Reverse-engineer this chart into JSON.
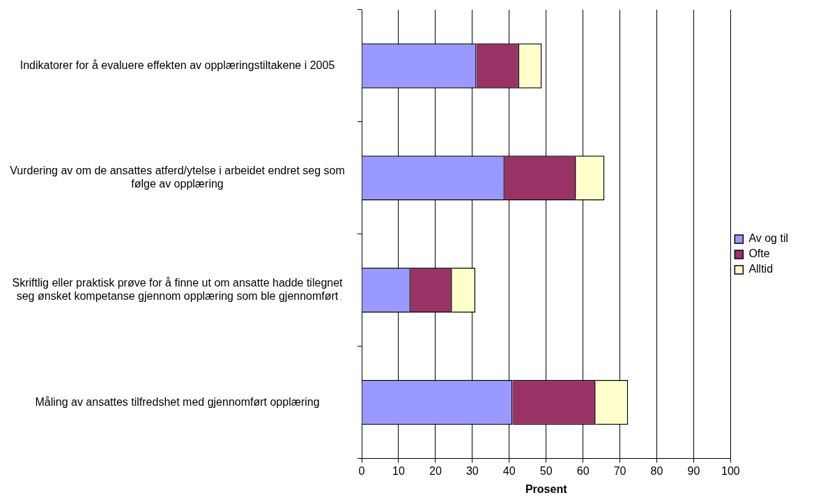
{
  "chart_data": {
    "type": "bar",
    "orientation": "horizontal",
    "stacked": true,
    "xlabel": "Prosent",
    "categories": [
      "Indikatorer for å evaluere effekten av opplæringstiltakene i 2005",
      "Vurdering av om de ansattes atferd/ytelse i arbeidet endret seg som følge av opplæring",
      "Skriftlig eller praktisk prøve for å finne ut om ansatte hadde tilegnet seg ønsket kompetanse gjennom opplæring som ble gjennomført",
      "Måling av ansattes tilfredshet med gjennomført opplæring"
    ],
    "series": [
      {
        "name": "Av og til",
        "color": "#9999ff",
        "values": [
          31.1,
          38.7,
          13.2,
          40.9
        ]
      },
      {
        "name": "Ofte",
        "color": "#993366",
        "values": [
          11.6,
          19.4,
          11.3,
          22.5
        ]
      },
      {
        "name": "Alltid",
        "color": "#ffffcc",
        "values": [
          6.1,
          7.7,
          6.3,
          8.8
        ]
      }
    ],
    "xlim": [
      0,
      100
    ],
    "xticks": [
      0,
      10,
      20,
      30,
      40,
      50,
      60,
      70,
      80,
      90,
      100
    ],
    "grid": "x",
    "legend": "right"
  }
}
